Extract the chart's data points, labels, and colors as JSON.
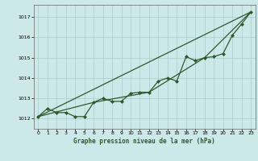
{
  "background_color": "#cce8e8",
  "grid_color": "#aacccc",
  "line_color": "#2d5a2d",
  "title": "Graphe pression niveau de la mer (hPa)",
  "xlim": [
    -0.5,
    23.5
  ],
  "ylim": [
    1011.5,
    1017.6
  ],
  "yticks": [
    1012,
    1013,
    1014,
    1015,
    1016,
    1017
  ],
  "xticks": [
    0,
    1,
    2,
    3,
    4,
    5,
    6,
    7,
    8,
    9,
    10,
    11,
    12,
    13,
    14,
    15,
    16,
    17,
    18,
    19,
    20,
    21,
    22,
    23
  ],
  "series_main": {
    "x": [
      0,
      1,
      2,
      3,
      4,
      5,
      6,
      7,
      8,
      9,
      10,
      11,
      12,
      13,
      14,
      15,
      16,
      17,
      18,
      19,
      20,
      21,
      22,
      23
    ],
    "y": [
      1012.1,
      1012.5,
      1012.3,
      1012.3,
      1012.1,
      1012.1,
      1012.8,
      1013.0,
      1012.85,
      1012.85,
      1013.25,
      1013.3,
      1013.3,
      1013.85,
      1014.0,
      1013.85,
      1015.05,
      1014.85,
      1015.0,
      1015.05,
      1015.2,
      1016.1,
      1016.65,
      1017.25
    ]
  },
  "series_straight": {
    "x": [
      0,
      23
    ],
    "y": [
      1012.1,
      1017.25
    ]
  },
  "series_6h": {
    "x": [
      0,
      6,
      12,
      18,
      23
    ],
    "y": [
      1012.1,
      1012.8,
      1013.3,
      1015.0,
      1017.25
    ]
  }
}
